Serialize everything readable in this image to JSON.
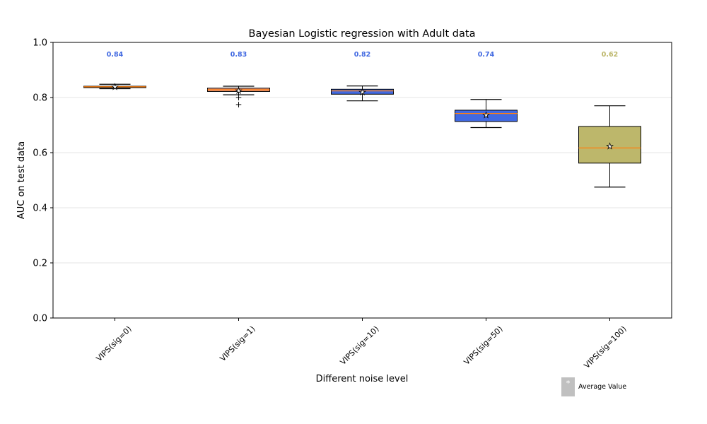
{
  "chart_data": {
    "type": "boxplot",
    "title": "Bayesian Logistic regression with Adult data",
    "xlabel": "Different noise level",
    "ylabel": "AUC on test data",
    "ylim": [
      0.0,
      1.0
    ],
    "yticks": [
      "0.0",
      "0.2",
      "0.4",
      "0.6",
      "0.8",
      "1.0"
    ],
    "grid": "horizontal",
    "categories": [
      "VIPS(sig=0)",
      "VIPS(sig=1)",
      "VIPS(sig=10)",
      "VIPS(sig=50)",
      "VIPS(sig=100)"
    ],
    "boxes": [
      {
        "whisker_low": 0.832,
        "q1": 0.836,
        "median": 0.839,
        "q3": 0.841,
        "whisker_high": 0.848,
        "mean": 0.84,
        "mean_label": "0.84",
        "fliers": [],
        "color": "#e9967a",
        "label_color": "#4169e1"
      },
      {
        "whisker_low": 0.81,
        "q1": 0.822,
        "median": 0.828,
        "q3": 0.834,
        "whisker_high": 0.841,
        "mean": 0.826,
        "mean_label": "0.83",
        "fliers": [
          0.8,
          0.774
        ],
        "color": "#e9967a",
        "label_color": "#4169e1"
      },
      {
        "whisker_low": 0.788,
        "q1": 0.812,
        "median": 0.824,
        "q3": 0.83,
        "whisker_high": 0.842,
        "mean": 0.82,
        "mean_label": "0.82",
        "fliers": [],
        "color": "#4169e1",
        "label_color": "#4169e1"
      },
      {
        "whisker_low": 0.691,
        "q1": 0.713,
        "median": 0.742,
        "q3": 0.754,
        "whisker_high": 0.793,
        "mean": 0.737,
        "mean_label": "0.74",
        "fliers": [],
        "color": "#4169e1",
        "label_color": "#4169e1"
      },
      {
        "whisker_low": 0.475,
        "q1": 0.562,
        "median": 0.617,
        "q3": 0.695,
        "whisker_high": 0.77,
        "mean": 0.624,
        "mean_label": "0.62",
        "fliers": [],
        "color": "#bdb76b",
        "label_color": "#bdb76b"
      }
    ],
    "median_color": "#ff7f0e",
    "legend": {
      "label": "Average Value",
      "placement": "bottom-right",
      "marker": "*"
    }
  }
}
